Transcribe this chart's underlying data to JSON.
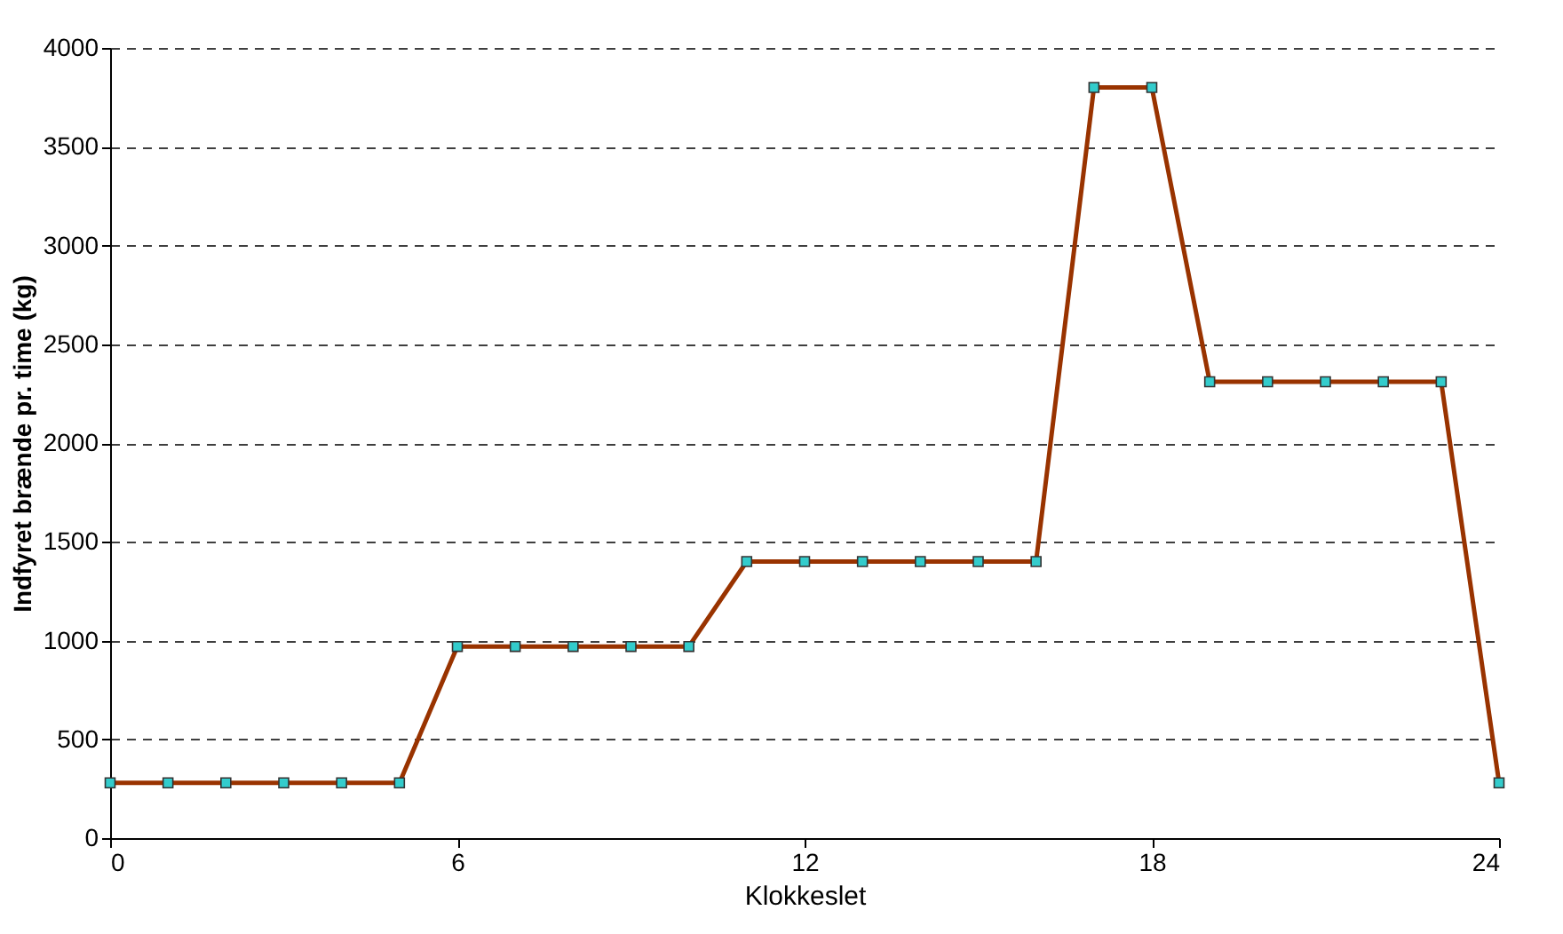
{
  "chart_data": {
    "type": "line",
    "xlabel": "Klokkeslet",
    "ylabel": "Indfyret brænde pr. time (kg)",
    "x": [
      0,
      1,
      2,
      3,
      4,
      5,
      6,
      7,
      8,
      9,
      10,
      11,
      12,
      13,
      14,
      15,
      16,
      17,
      18,
      19,
      20,
      21,
      22,
      23,
      24
    ],
    "series": [
      {
        "color": "#993300",
        "values": [
          280,
          280,
          280,
          280,
          280,
          280,
          970,
          970,
          970,
          970,
          970,
          1400,
          1400,
          1400,
          1400,
          1400,
          1400,
          3800,
          3800,
          2310,
          2310,
          2310,
          2310,
          2310,
          280
        ]
      }
    ],
    "xlim": [
      0,
      24
    ],
    "xticks": [
      0,
      6,
      12,
      18,
      24
    ],
    "ylim": [
      0,
      4000
    ],
    "yticks": [
      0,
      500,
      1000,
      1500,
      2000,
      2500,
      3000,
      3500,
      4000
    ],
    "grid": "y",
    "marker": "square",
    "line_style": "solid"
  }
}
